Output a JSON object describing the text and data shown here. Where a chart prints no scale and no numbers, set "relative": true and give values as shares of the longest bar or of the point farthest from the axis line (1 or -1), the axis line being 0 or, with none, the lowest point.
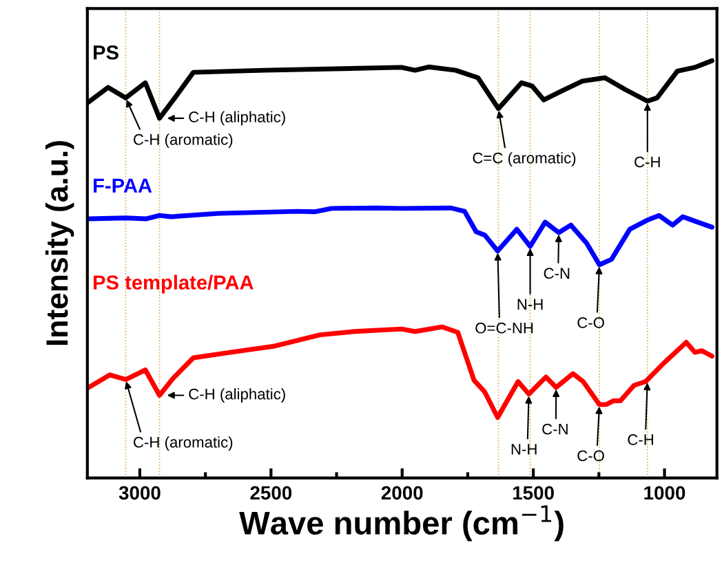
{
  "chart_data": {
    "type": "line",
    "relative": true,
    "xlabel": "Wave number (cm$^{−1}$)",
    "ylabel": "Intensity (a.u.)",
    "xlim": [
      3200,
      800
    ],
    "xticks": [
      3000,
      2500,
      2000,
      1500,
      1000
    ],
    "grid": false,
    "legend": false,
    "marker": "none",
    "line_style": "solid",
    "series": [
      {
        "name": "PS",
        "color": "#000000",
        "x": [
          3195,
          3121,
          3054,
          2979,
          2925,
          2863,
          2796,
          2527,
          2003,
          1951,
          1899,
          1796,
          1711,
          1633,
          1545,
          1504,
          1460,
          1390,
          1313,
          1227,
          1150,
          1065,
          1028,
          951,
          884,
          819
        ],
        "values": [
          0.901,
          0.936,
          0.911,
          0.947,
          0.862,
          0.914,
          0.972,
          0.977,
          0.984,
          0.977,
          0.985,
          0.977,
          0.959,
          0.885,
          0.947,
          0.939,
          0.906,
          0.928,
          0.951,
          0.959,
          0.931,
          0.903,
          0.911,
          0.975,
          0.984,
          1.0
        ]
      },
      {
        "name": "F-PAA",
        "color": "#0000ff",
        "x": [
          3195,
          3054,
          2977,
          2925,
          2881,
          2700,
          2398,
          2331,
          2269,
          2098,
          2003,
          1814,
          1762,
          1718,
          1685,
          1636,
          1563,
          1512,
          1455,
          1403,
          1357,
          1297,
          1248,
          1202,
          1132,
          1065,
          1021,
          969,
          930,
          873,
          819
        ],
        "values": [
          0.621,
          0.623,
          0.621,
          0.629,
          0.626,
          0.634,
          0.639,
          0.638,
          0.646,
          0.647,
          0.646,
          0.647,
          0.639,
          0.59,
          0.582,
          0.544,
          0.596,
          0.555,
          0.613,
          0.588,
          0.606,
          0.563,
          0.511,
          0.524,
          0.596,
          0.618,
          0.629,
          0.606,
          0.626,
          0.613,
          0.601
        ]
      },
      {
        "name": "PS template/PAA",
        "color": "#ff0000",
        "x": [
          3195,
          3114,
          3054,
          2979,
          2925,
          2873,
          2796,
          2656,
          2486,
          2313,
          2183,
          2003,
          1951,
          1848,
          1788,
          1726,
          1685,
          1636,
          1558,
          1517,
          1452,
          1413,
          1349,
          1310,
          1248,
          1222,
          1194,
          1168,
          1116,
          1072,
          1003,
          917,
          884,
          858,
          819
        ],
        "values": [
          0.217,
          0.247,
          0.236,
          0.259,
          0.198,
          0.239,
          0.288,
          0.301,
          0.316,
          0.343,
          0.351,
          0.357,
          0.351,
          0.362,
          0.349,
          0.234,
          0.206,
          0.145,
          0.231,
          0.201,
          0.242,
          0.217,
          0.25,
          0.231,
          0.176,
          0.176,
          0.185,
          0.185,
          0.222,
          0.231,
          0.275,
          0.325,
          0.301,
          0.305,
          0.292
        ]
      }
    ],
    "ref_lines": [
      {
        "axis": "x",
        "value": 3054,
        "color": "#d9a55b",
        "line_style": "dotted"
      },
      {
        "axis": "x",
        "value": 2925,
        "color": "#d9a55b",
        "line_style": "dotted"
      },
      {
        "axis": "x",
        "value": 1633,
        "color": "#d9a55b",
        "line_style": "dotted"
      },
      {
        "axis": "x",
        "value": 1512,
        "color": "#d9a55b",
        "line_style": "dotted"
      },
      {
        "axis": "x",
        "value": 1248,
        "color": "#d9a55b",
        "line_style": "dotted"
      },
      {
        "axis": "x",
        "value": 1065,
        "color": "#d9a55b",
        "line_style": "dotted"
      }
    ],
    "annotations": [
      {
        "text": "C-H (aromatic)",
        "x": 3054,
        "y": 0.911
      },
      {
        "text": "C-H (aliphatic)",
        "x": 2925,
        "y": 0.862
      },
      {
        "text": "C=C (aromatic)",
        "x": 1633,
        "y": 0.885
      },
      {
        "text": "C-H",
        "x": 1065,
        "y": 0.903
      },
      {
        "text": "O=C-NH",
        "x": 1636,
        "y": 0.544
      },
      {
        "text": "N-H",
        "x": 1512,
        "y": 0.555
      },
      {
        "text": "C-N",
        "x": 1403,
        "y": 0.588
      },
      {
        "text": "C-O",
        "x": 1248,
        "y": 0.511
      },
      {
        "text": "C-H (aromatic)",
        "x": 3054,
        "y": 0.236
      },
      {
        "text": "C-H (aliphatic)",
        "x": 2925,
        "y": 0.198
      },
      {
        "text": "N-H",
        "x": 1517,
        "y": 0.201
      },
      {
        "text": "C-N",
        "x": 1413,
        "y": 0.217
      },
      {
        "text": "C-O",
        "x": 1248,
        "y": 0.176
      },
      {
        "text": "C-H",
        "x": 1065,
        "y": 0.233
      }
    ]
  }
}
